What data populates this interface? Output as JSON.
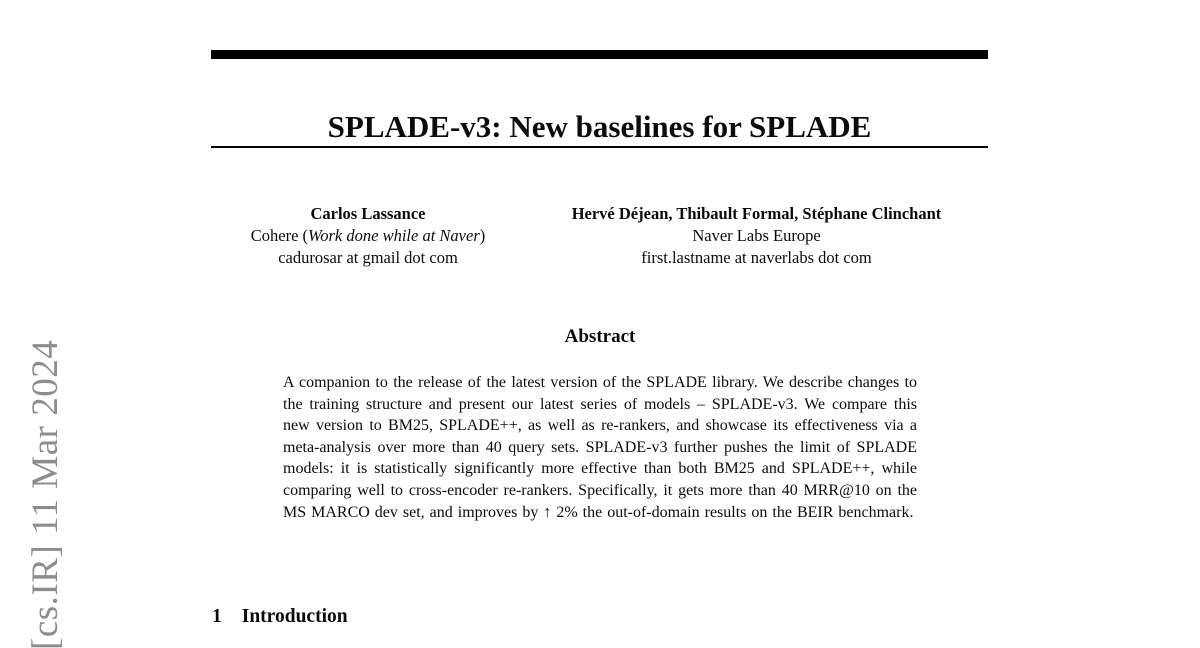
{
  "page": {
    "background": "#ffffff",
    "text_color": "#0b0b0b"
  },
  "colors": {
    "rule": "#000000",
    "stamp_gray": "#8d8d8d"
  },
  "arxiv_stamp": {
    "text": "[cs.IR] 11 Mar 2024"
  },
  "header": {
    "title": "SPLADE-v3: New baselines for SPLADE"
  },
  "authors": [
    {
      "name": "Carlos Lassance",
      "affiliation_prefix": "Cohere (",
      "affiliation_note_italic": "Work done while at Naver",
      "affiliation_suffix": ")",
      "email": "cadurosar at gmail dot com"
    },
    {
      "name": "Hervé Déjean, Thibault Formal, Stéphane Clinchant",
      "affiliation": "Naver Labs Europe",
      "email": "first.lastname at naverlabs dot com"
    }
  ],
  "abstract": {
    "heading": "Abstract",
    "text": "A companion to the release of the latest version of the SPLADE library. We describe changes to the training structure and present our latest series of models – SPLADE-v3. We compare this new version to BM25, SPLADE++, as well as re-rankers, and showcase its effectiveness via a meta-analysis over more than 40 query sets. SPLADE-v3 further pushes the limit of SPLADE models: it is statistically significantly more effective than both BM25 and SPLADE++, while comparing well to cross-encoder re-rankers. Specifically, it gets more than 40 MRR@10 on the MS MARCO dev set, and improves by ↑ 2% the out-of-domain results on the BEIR benchmark."
  },
  "sections": [
    {
      "number": "1",
      "title": "Introduction"
    }
  ]
}
